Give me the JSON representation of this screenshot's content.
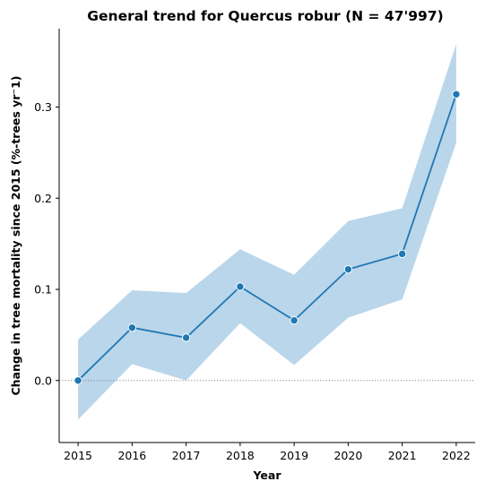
{
  "chart_data": {
    "type": "line",
    "title": "General trend for Quercus robur  (N = 47'997)",
    "xlabel": "Year",
    "ylabel": "Change in tree mortality since 2015 (%-trees yr⁻1)",
    "x": [
      2015,
      2016,
      2017,
      2018,
      2019,
      2020,
      2021,
      2022
    ],
    "x_ticks": [
      "2015",
      "2016",
      "2017",
      "2018",
      "2019",
      "2020",
      "2021",
      "2022"
    ],
    "y_ticks": [
      {
        "value": 0.0,
        "label": "0.0"
      },
      {
        "value": 0.1,
        "label": "0.1"
      },
      {
        "value": 0.2,
        "label": "0.2"
      },
      {
        "value": 0.3,
        "label": "0.3"
      }
    ],
    "ylim": [
      -0.068,
      0.386
    ],
    "series": [
      {
        "values": [
          0.0,
          0.058,
          0.047,
          0.103,
          0.066,
          0.122,
          0.139,
          0.314
        ],
        "lower": [
          -0.043,
          0.018,
          0.0,
          0.063,
          0.017,
          0.069,
          0.089,
          0.261
        ],
        "upper": [
          0.045,
          0.099,
          0.096,
          0.144,
          0.116,
          0.175,
          0.189,
          0.369
        ],
        "color": "#1f77b4",
        "band_color": "#bad6ea"
      }
    ],
    "reference_line": {
      "y": 0.0,
      "style": "dotted",
      "color": "#888888"
    },
    "grid": false,
    "legend": "none"
  }
}
